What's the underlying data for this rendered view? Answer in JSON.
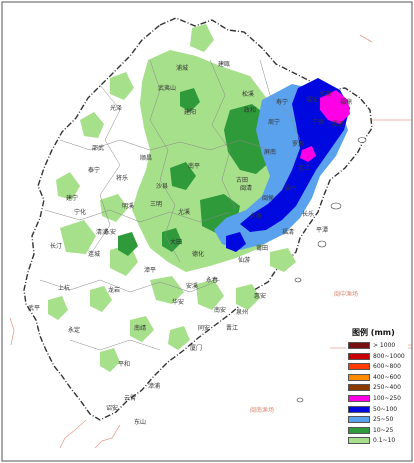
{
  "map": {
    "places": [
      "建瓯",
      "武夷山",
      "浦城",
      "光泽",
      "松溪",
      "政和",
      "邵武",
      "建阳",
      "顺昌",
      "屏南",
      "古田",
      "南平",
      "尤溪",
      "沙县",
      "将乐",
      "泰宁",
      "建宁",
      "宁化",
      "清流",
      "明溪",
      "三明",
      "永安",
      "大田",
      "永春",
      "德化",
      "仙游",
      "莆田",
      "福州",
      "闽侯",
      "连江",
      "罗源",
      "宁德",
      "福安",
      "福鼎",
      "霞浦",
      "柘荣",
      "长汀",
      "连城",
      "上杭",
      "武平",
      "永定",
      "漳平",
      "龙岩",
      "华安",
      "南靖",
      "平和",
      "诏安",
      "云霄",
      "漳浦",
      "东山",
      "厦门",
      "同安",
      "晋江",
      "泉州",
      "惠安",
      "南安",
      "安溪",
      "长乐",
      "福清",
      "平潭",
      "闽清",
      "永泰",
      "周宁",
      "寿宁"
    ],
    "seas": [
      "闽中渔场",
      "闽南渔场"
    ]
  },
  "legend": {
    "title": "图例 (mm)",
    "entries": [
      {
        "label": "> 1000",
        "color": "#7a1010"
      },
      {
        "label": "800~1000",
        "color": "#c80000"
      },
      {
        "label": "600~800",
        "color": "#ff3b00"
      },
      {
        "label": "400~600",
        "color": "#ff8a00"
      },
      {
        "label": "250~400",
        "color": "#8b3a00"
      },
      {
        "label": "100~250",
        "color": "#ff00e6"
      },
      {
        "label": "50~100",
        "color": "#0008e0"
      },
      {
        "label": "25~50",
        "color": "#5aa2ee"
      },
      {
        "label": "10~25",
        "color": "#2f9a3a"
      },
      {
        "label": "0.1~10",
        "color": "#a7e08a"
      }
    ]
  }
}
